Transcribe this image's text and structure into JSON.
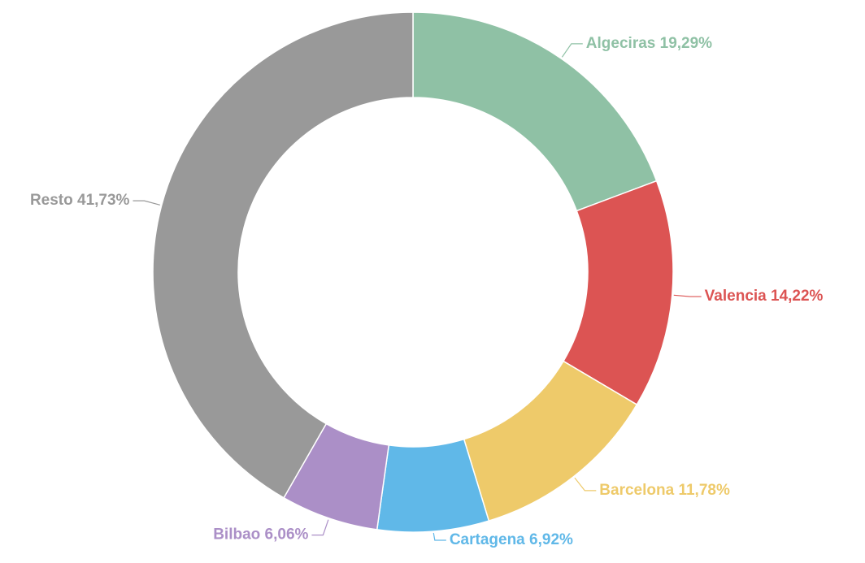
{
  "chart_data": {
    "type": "donut",
    "categories": [
      "Algeciras",
      "Valencia",
      "Barcelona",
      "Cartagena",
      "Bilbao",
      "Resto"
    ],
    "values": [
      19.29,
      14.22,
      11.78,
      6.92,
      6.06,
      41.73
    ],
    "value_labels": [
      "19,29%",
      "14,22%",
      "11,78%",
      "6,92%",
      "6,06%",
      "41,73%"
    ],
    "colors": [
      "#8fc1a5",
      "#dc5453",
      "#eeca6a",
      "#60b8e8",
      "#ab8fc7",
      "#999999"
    ]
  }
}
